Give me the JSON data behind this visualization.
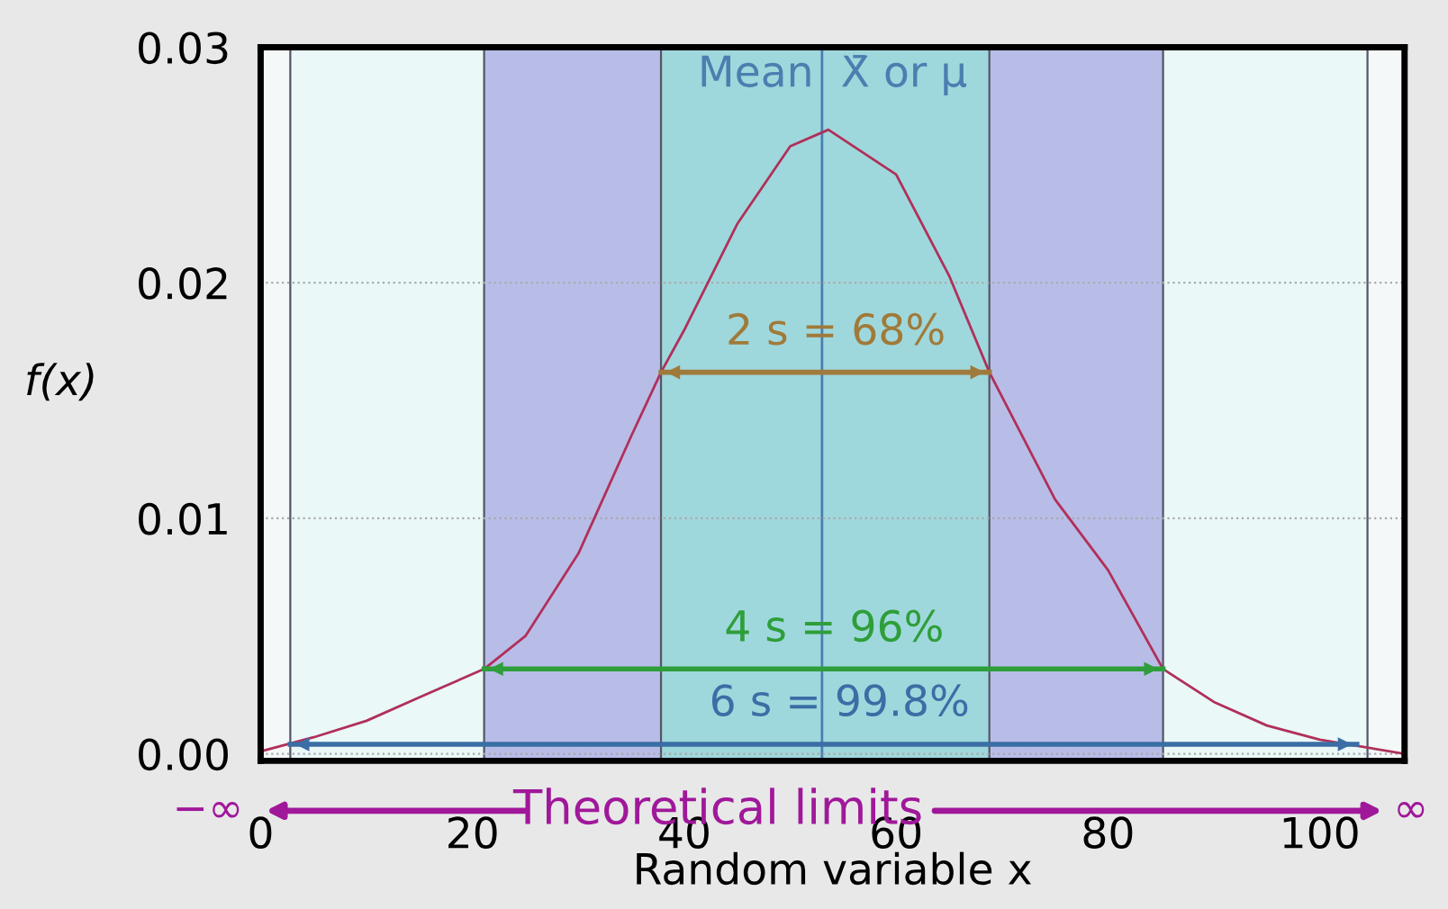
{
  "chart_data": {
    "type": "line",
    "xlabel": "Random variable x",
    "ylabel": "f(x)",
    "x": [
      0,
      5,
      10,
      15,
      21.1,
      25,
      30,
      35,
      37.8,
      40,
      45,
      50,
      53.6,
      60,
      65,
      68.8,
      75,
      80,
      85.2,
      90,
      95,
      100,
      108
    ],
    "series": [
      {
        "color": "#b0305a",
        "values": [
          0.0001,
          0.0007,
          0.0014,
          0.0024,
          0.0036,
          0.005,
          0.0085,
          0.0135,
          0.0162,
          0.018,
          0.0225,
          0.0258,
          0.0265,
          0.0246,
          0.0203,
          0.0162,
          0.0108,
          0.0078,
          0.0036,
          0.0022,
          0.0012,
          0.0006,
          0.0
        ]
      },
      {
        "color": "#3a6ea5",
        "x": [
          2.8,
          103.5
        ],
        "values": [
          0.0004,
          0.0004
        ]
      },
      {
        "color": "#2e9e3a",
        "x": [
          21.1,
          85.2
        ],
        "values": [
          0.0036,
          0.0036
        ]
      },
      {
        "color": "#a07a3a",
        "x": [
          37.8,
          68.8
        ],
        "values": [
          0.0162,
          0.0162
        ]
      }
    ],
    "xlim": [
      0,
      108
    ],
    "xticks": [
      0,
      20,
      40,
      60,
      80,
      100
    ],
    "ylim": [
      -0.0003,
      0.03
    ],
    "yticks": [
      {
        "value": 0,
        "label": "0.00"
      },
      {
        "value": 0.01,
        "label": "0.01"
      },
      {
        "value": 0.02,
        "label": "0.02"
      },
      {
        "value": 0.03,
        "label": "0.03"
      }
    ],
    "grid": "y",
    "marker": "none",
    "line_style": "solid",
    "bands": [
      {
        "axis": "x",
        "from": 2.8,
        "to": 104.5,
        "label": "6 s = 99.8%",
        "color": "#eaf8f8"
      },
      {
        "axis": "x",
        "from": 21.1,
        "to": 85.2,
        "label": "4 s = 96%",
        "color": "#b8bde8"
      },
      {
        "axis": "x",
        "from": 37.8,
        "to": 68.8,
        "label": "2 s = 68%",
        "color": "#9fd8dc"
      }
    ],
    "ref_lines": [
      {
        "axis": "x",
        "value": 53,
        "label": "Mean  X̄ or μ",
        "color": "#4a7fb0"
      }
    ],
    "annotations": [
      "−∞",
      "Theoretical limits",
      "∞"
    ]
  }
}
